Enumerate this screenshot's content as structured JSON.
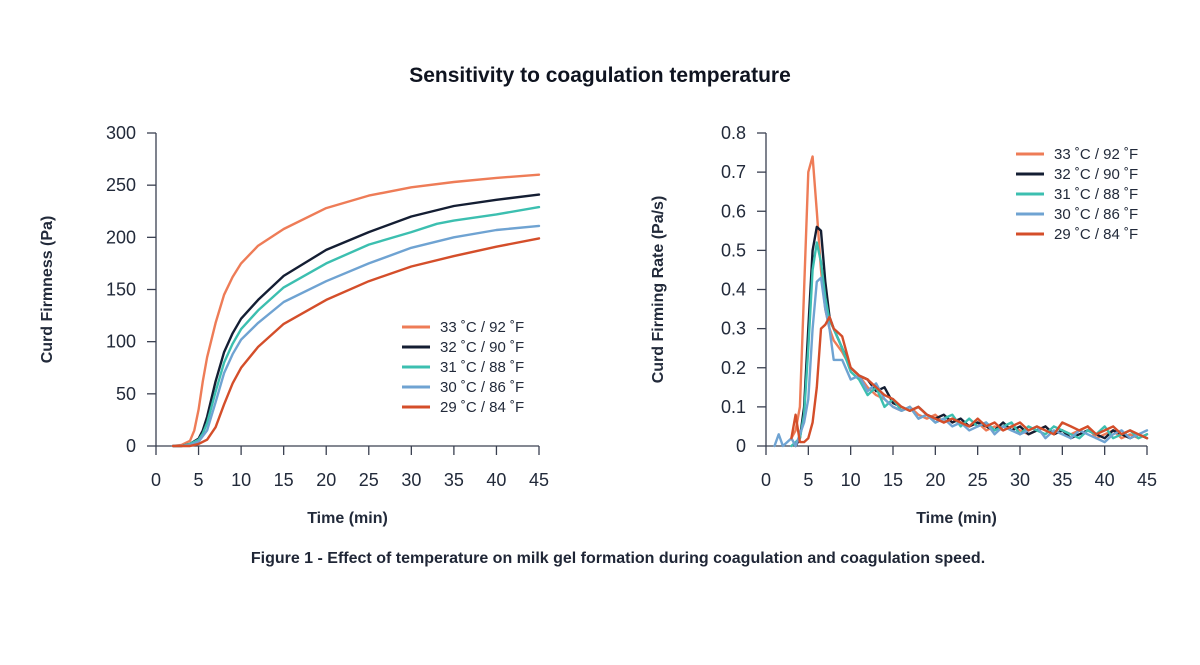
{
  "title": "Sensitivity to coagulation temperature",
  "caption": "Figure 1 - Effect of temperature on milk gel formation during coagulation and coagulation speed.",
  "colors": {
    "33": "#ee7c57",
    "32": "#141e33",
    "31": "#3cbfb0",
    "30": "#6fa3d2",
    "29": "#d44e2a"
  },
  "chart_data": [
    {
      "type": "line",
      "name": "curd-firmness",
      "xlabel": "Time (min)",
      "ylabel": "Curd Firmness (Pa)",
      "xlim": [
        0,
        45
      ],
      "ylim": [
        0,
        300
      ],
      "xticks": [
        0,
        5,
        10,
        15,
        20,
        25,
        30,
        35,
        40,
        45
      ],
      "yticks": [
        0,
        50,
        100,
        150,
        200,
        250,
        300
      ],
      "legend_position": "center-right",
      "series": [
        {
          "name": "33 ˚C / 92 ˚F",
          "key": "33",
          "x": [
            2,
            3,
            4,
            4.5,
            5,
            5.5,
            6,
            7,
            8,
            9,
            10,
            12,
            15,
            20,
            25,
            30,
            35,
            40,
            45
          ],
          "y": [
            0,
            1,
            5,
            15,
            35,
            62,
            85,
            118,
            145,
            162,
            175,
            192,
            208,
            228,
            240,
            248,
            253,
            257,
            260
          ]
        },
        {
          "name": "32 ˚C / 90 ˚F",
          "key": "32",
          "x": [
            2,
            3,
            4,
            5,
            5.5,
            6,
            7,
            8,
            9,
            10,
            12,
            15,
            20,
            25,
            30,
            35,
            40,
            45
          ],
          "y": [
            0,
            0,
            2,
            7,
            15,
            28,
            62,
            90,
            108,
            122,
            140,
            163,
            188,
            205,
            220,
            230,
            236,
            241
          ]
        },
        {
          "name": "31 ˚C / 88 ˚F",
          "key": "31",
          "x": [
            2,
            3,
            4,
            5,
            5.5,
            6,
            7,
            8,
            9,
            10,
            12,
            15,
            20,
            25,
            30,
            33,
            35,
            40,
            45
          ],
          "y": [
            0,
            0,
            2,
            6,
            12,
            22,
            52,
            80,
            98,
            112,
            130,
            152,
            175,
            193,
            205,
            213,
            216,
            222,
            229
          ]
        },
        {
          "name": "30 ˚C / 86 ˚F",
          "key": "30",
          "x": [
            2,
            3,
            4,
            5,
            6,
            7,
            8,
            9,
            10,
            12,
            15,
            20,
            25,
            30,
            35,
            40,
            45
          ],
          "y": [
            0,
            0,
            1,
            4,
            15,
            42,
            70,
            88,
            102,
            118,
            138,
            158,
            175,
            190,
            200,
            207,
            211
          ]
        },
        {
          "name": "29 ˚C / 84 ˚F",
          "key": "29",
          "x": [
            2,
            3,
            4,
            5,
            6,
            7,
            8,
            9,
            10,
            12,
            15,
            20,
            25,
            30,
            35,
            40,
            45
          ],
          "y": [
            0,
            0,
            0,
            2,
            6,
            18,
            40,
            60,
            75,
            95,
            117,
            140,
            158,
            172,
            182,
            191,
            199
          ]
        }
      ]
    },
    {
      "type": "line",
      "name": "curd-firming-rate",
      "xlabel": "Time (min)",
      "ylabel": "Curd Firming Rate (Pa/s)",
      "xlim": [
        0,
        45
      ],
      "ylim": [
        0,
        0.8
      ],
      "xticks": [
        0,
        5,
        10,
        15,
        20,
        25,
        30,
        35,
        40,
        45
      ],
      "yticks": [
        0,
        0.1,
        0.2,
        0.3,
        0.4,
        0.5,
        0.6,
        0.7,
        0.8
      ],
      "ytick_labels": [
        "0",
        "0.1",
        "0.2",
        "0.3",
        "0.4",
        "0.5",
        "0.6",
        "0.7",
        "0.8"
      ],
      "legend_position": "top-right",
      "series": [
        {
          "name": "33 ˚C / 92 ˚F",
          "key": "33",
          "x": [
            3,
            3.5,
            4,
            4.5,
            5,
            5.5,
            6,
            6.5,
            7,
            7.5,
            8,
            9,
            10,
            11,
            12,
            13,
            14,
            15,
            16,
            17,
            18,
            19,
            20,
            21,
            22,
            23,
            24,
            25,
            26,
            27,
            28,
            29,
            30,
            31,
            32,
            33,
            34,
            35,
            36,
            37,
            38,
            39,
            40,
            41,
            42,
            43,
            44,
            45
          ],
          "y": [
            0.02,
            0.04,
            0.1,
            0.4,
            0.7,
            0.74,
            0.6,
            0.45,
            0.35,
            0.3,
            0.27,
            0.24,
            0.2,
            0.18,
            0.15,
            0.13,
            0.12,
            0.1,
            0.09,
            0.1,
            0.08,
            0.07,
            0.08,
            0.06,
            0.07,
            0.06,
            0.05,
            0.06,
            0.04,
            0.05,
            0.04,
            0.05,
            0.04,
            0.03,
            0.04,
            0.05,
            0.03,
            0.04,
            0.03,
            0.04,
            0.05,
            0.02,
            0.03,
            0.04,
            0.02,
            0.03,
            0.02,
            0.03
          ]
        },
        {
          "name": "32 ˚C / 90 ˚F",
          "key": "32",
          "x": [
            3.5,
            4,
            4.5,
            5,
            5.5,
            6,
            6.5,
            7,
            7.5,
            8,
            9,
            10,
            11,
            12,
            13,
            14,
            15,
            16,
            17,
            18,
            19,
            20,
            21,
            22,
            23,
            24,
            25,
            26,
            27,
            28,
            29,
            30,
            31,
            32,
            33,
            34,
            35,
            36,
            37,
            38,
            39,
            40,
            41,
            42,
            43,
            44,
            45
          ],
          "y": [
            0,
            0.02,
            0.1,
            0.3,
            0.5,
            0.56,
            0.55,
            0.42,
            0.33,
            0.3,
            0.25,
            0.2,
            0.18,
            0.17,
            0.14,
            0.15,
            0.11,
            0.1,
            0.09,
            0.1,
            0.08,
            0.07,
            0.08,
            0.06,
            0.07,
            0.05,
            0.06,
            0.05,
            0.04,
            0.06,
            0.04,
            0.05,
            0.03,
            0.04,
            0.05,
            0.03,
            0.04,
            0.02,
            0.03,
            0.04,
            0.03,
            0.02,
            0.04,
            0.03,
            0.02,
            0.03,
            0.02
          ]
        },
        {
          "name": "31 ˚C / 88 ˚F",
          "key": "31",
          "x": [
            3,
            4,
            4.5,
            5,
            5.5,
            6,
            6.5,
            7,
            7.5,
            8,
            9,
            10,
            11,
            12,
            13,
            14,
            15,
            16,
            17,
            18,
            19,
            20,
            21,
            22,
            23,
            24,
            25,
            26,
            27,
            28,
            29,
            30,
            31,
            32,
            33,
            34,
            35,
            36,
            37,
            38,
            39,
            40,
            41,
            42,
            43,
            44,
            45
          ],
          "y": [
            0,
            0.02,
            0.08,
            0.25,
            0.45,
            0.52,
            0.47,
            0.38,
            0.32,
            0.3,
            0.25,
            0.19,
            0.17,
            0.13,
            0.15,
            0.1,
            0.12,
            0.09,
            0.1,
            0.07,
            0.08,
            0.06,
            0.07,
            0.08,
            0.05,
            0.07,
            0.05,
            0.06,
            0.04,
            0.05,
            0.06,
            0.03,
            0.05,
            0.04,
            0.03,
            0.05,
            0.04,
            0.03,
            0.02,
            0.04,
            0.03,
            0.05,
            0.02,
            0.03,
            0.04,
            0.02,
            0.03
          ]
        },
        {
          "name": "30 ˚C / 86 ˚F",
          "key": "30",
          "x": [
            1,
            1.5,
            2,
            2.5,
            3,
            3.5,
            4,
            4.5,
            5,
            5.5,
            6,
            6.5,
            7,
            7.5,
            8,
            9,
            10,
            11,
            12,
            13,
            14,
            15,
            16,
            17,
            18,
            19,
            20,
            21,
            22,
            23,
            24,
            25,
            26,
            27,
            28,
            29,
            30,
            31,
            32,
            33,
            34,
            35,
            36,
            37,
            38,
            39,
            40,
            41,
            42,
            43,
            44,
            45
          ],
          "y": [
            0,
            0.03,
            0,
            0.01,
            0.02,
            0,
            0.03,
            0.06,
            0.12,
            0.3,
            0.42,
            0.43,
            0.35,
            0.3,
            0.22,
            0.22,
            0.17,
            0.18,
            0.14,
            0.16,
            0.12,
            0.1,
            0.09,
            0.1,
            0.07,
            0.08,
            0.06,
            0.07,
            0.05,
            0.06,
            0.04,
            0.05,
            0.06,
            0.03,
            0.05,
            0.04,
            0.03,
            0.04,
            0.05,
            0.02,
            0.04,
            0.03,
            0.02,
            0.04,
            0.03,
            0.02,
            0.01,
            0.03,
            0.04,
            0.02,
            0.03,
            0.04
          ]
        },
        {
          "name": "29 ˚C / 84 ˚F",
          "key": "29",
          "x": [
            3,
            3.5,
            4,
            4.5,
            5,
            5.5,
            6,
            6.5,
            7,
            7.5,
            8,
            8.5,
            9,
            10,
            11,
            12,
            13,
            14,
            15,
            16,
            17,
            18,
            19,
            20,
            21,
            22,
            23,
            24,
            25,
            26,
            27,
            28,
            29,
            30,
            31,
            32,
            33,
            34,
            35,
            36,
            37,
            38,
            39,
            40,
            41,
            42,
            43,
            44,
            45
          ],
          "y": [
            0.02,
            0.08,
            0.01,
            0.01,
            0.02,
            0.06,
            0.15,
            0.3,
            0.31,
            0.33,
            0.3,
            0.29,
            0.28,
            0.2,
            0.18,
            0.17,
            0.15,
            0.13,
            0.12,
            0.1,
            0.09,
            0.1,
            0.08,
            0.07,
            0.06,
            0.07,
            0.06,
            0.05,
            0.07,
            0.05,
            0.06,
            0.04,
            0.05,
            0.06,
            0.04,
            0.05,
            0.04,
            0.03,
            0.06,
            0.05,
            0.04,
            0.05,
            0.03,
            0.04,
            0.05,
            0.03,
            0.04,
            0.03,
            0.02
          ]
        }
      ]
    }
  ]
}
